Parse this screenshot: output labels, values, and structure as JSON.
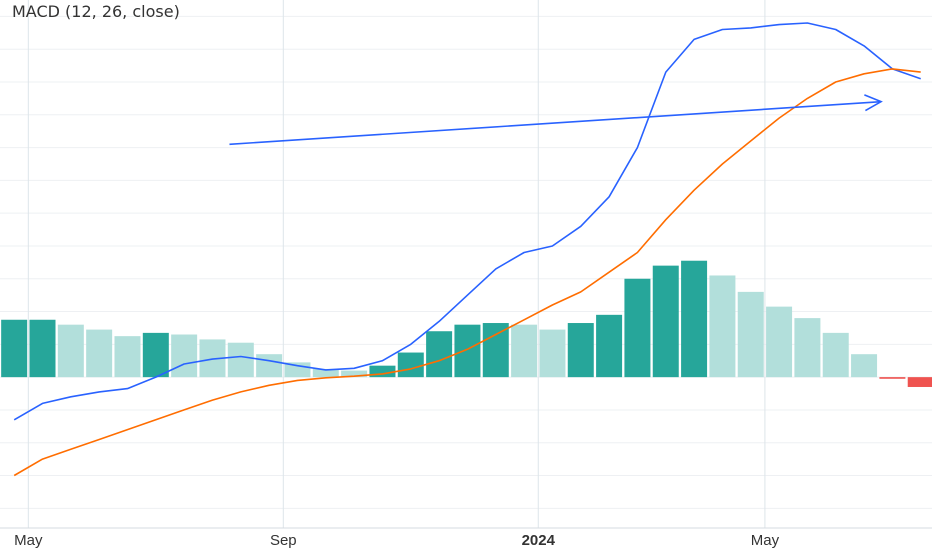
{
  "indicator": {
    "title": "MACD (12, 26, close)"
  },
  "chart_data": {
    "type": "line",
    "title": "MACD (12, 26, close)",
    "x_ticks": [
      "May",
      "Sep",
      "2024",
      "May"
    ],
    "x_tick_emphasis": [
      false,
      false,
      true,
      false
    ],
    "x_period_index": [
      0.5,
      9.5,
      18.5,
      26.5
    ],
    "ylim": [
      -4.6,
      11.5
    ],
    "grid": true,
    "periods": 33,
    "series": [
      {
        "kind": "macd",
        "color": "#2962ff",
        "values": [
          -1.3,
          -0.8,
          -0.6,
          -0.45,
          -0.35,
          0.0,
          0.4,
          0.55,
          0.63,
          0.5,
          0.35,
          0.22,
          0.27,
          0.5,
          1.0,
          1.7,
          2.5,
          3.3,
          3.8,
          4.0,
          4.6,
          5.5,
          7.0,
          9.3,
          10.3,
          10.6,
          10.65,
          10.75,
          10.8,
          10.6,
          10.1,
          9.4,
          9.1
        ]
      },
      {
        "kind": "signal",
        "color": "#ff6d00",
        "values": [
          -3.0,
          -2.5,
          -2.2,
          -1.9,
          -1.6,
          -1.3,
          -1.0,
          -0.7,
          -0.45,
          -0.25,
          -0.1,
          -0.02,
          0.03,
          0.1,
          0.25,
          0.5,
          0.85,
          1.3,
          1.75,
          2.2,
          2.6,
          3.2,
          3.8,
          4.8,
          5.7,
          6.5,
          7.2,
          7.9,
          8.5,
          9.0,
          9.25,
          9.4,
          9.3
        ]
      }
    ],
    "histogram": {
      "values": [
        1.75,
        1.75,
        1.6,
        1.45,
        1.25,
        1.35,
        1.3,
        1.15,
        1.05,
        0.7,
        0.45,
        0.25,
        0.2,
        0.35,
        0.75,
        1.4,
        1.6,
        1.65,
        1.6,
        1.45,
        1.65,
        1.9,
        3.0,
        3.4,
        3.55,
        3.1,
        2.6,
        2.15,
        1.8,
        1.35,
        0.7,
        -0.05,
        -0.3
      ],
      "colors": {
        "rising_positive": "#26a69a",
        "falling_positive": "#b2dfdb",
        "rising_negative": "#ffcdd2",
        "falling_negative": "#ef5350"
      }
    },
    "annotations": [
      {
        "type": "arrow",
        "color": "#2962ff",
        "from": {
          "period": 7.6,
          "value": 7.1
        },
        "to": {
          "period": 30.6,
          "value": 8.4
        }
      }
    ]
  }
}
